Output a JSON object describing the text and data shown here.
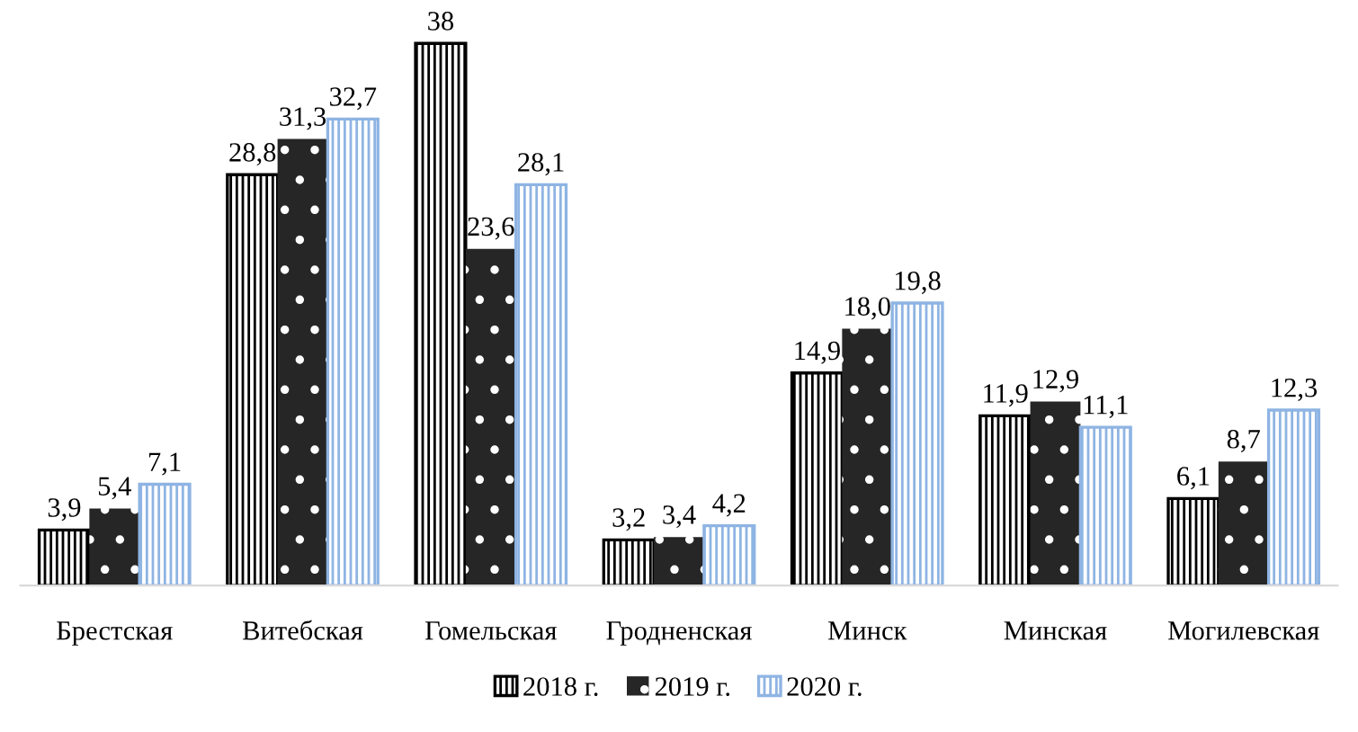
{
  "chart_data": {
    "type": "bar",
    "categories": [
      "Брестская",
      "Витебская",
      "Гомельская",
      "Гродненская",
      "Минск",
      "Минская",
      "Могилевская"
    ],
    "series": [
      {
        "name": "2018 г.",
        "color": "#000000",
        "values": [
          3.9,
          28.8,
          38,
          3.2,
          14.9,
          11.9,
          6.1
        ],
        "value_labels": [
          "3,9",
          "28,8",
          "38",
          "3,2",
          "14,9",
          "11,9",
          "6,1"
        ]
      },
      {
        "name": "2019 г.",
        "color": "#262626",
        "values": [
          5.4,
          31.3,
          23.6,
          3.4,
          18.0,
          12.9,
          8.7
        ],
        "value_labels": [
          "5,4",
          "31,3",
          "23,6",
          "3,4",
          "18,0",
          "12,9",
          "8,7"
        ]
      },
      {
        "name": "2020 г.",
        "color": "#8eb4e3",
        "values": [
          7.1,
          32.7,
          28.1,
          4.2,
          19.8,
          11.1,
          12.3
        ],
        "value_labels": [
          "7,1",
          "32,7",
          "28,1",
          "4,2",
          "19,8",
          "11,1",
          "12,3"
        ]
      }
    ],
    "legend": "bottom",
    "grid": false
  }
}
